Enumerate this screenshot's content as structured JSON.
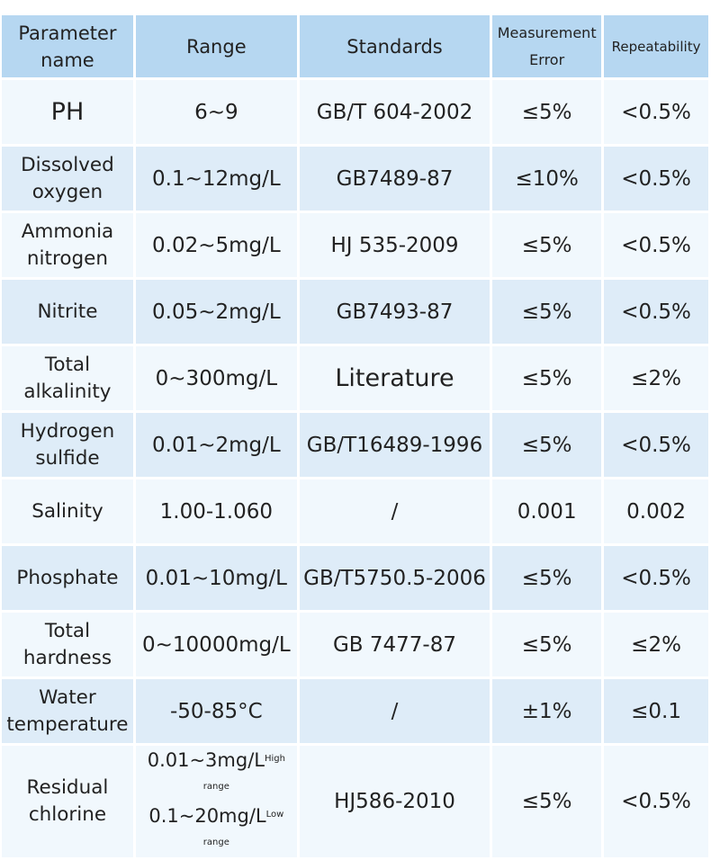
{
  "headers": {
    "name": [
      "Parameter",
      "name"
    ],
    "range": "Range",
    "standards": "Standards",
    "error": [
      "Measurement",
      "Error"
    ],
    "repeatability": "Repeatability"
  },
  "rows": [
    {
      "name": [
        "PH"
      ],
      "range": "6~9",
      "standard": "GB/T 604-2002",
      "error": "≤5%",
      "repeat": "<0.5%"
    },
    {
      "name": [
        "Dissolved",
        "oxygen"
      ],
      "range": "0.1~12mg/L",
      "standard": "GB7489-87",
      "error": "≤10%",
      "repeat": "<0.5%"
    },
    {
      "name": [
        "Ammonia",
        "nitrogen"
      ],
      "range": "0.02~5mg/L",
      "standard": "HJ 535-2009",
      "error": "≤5%",
      "repeat": "<0.5%"
    },
    {
      "name": [
        "Nitrite"
      ],
      "range": "0.05~2mg/L",
      "standard": "GB7493-87",
      "error": "≤5%",
      "repeat": "<0.5%"
    },
    {
      "name": [
        "Total",
        "alkalinity"
      ],
      "range": "0~300mg/L",
      "standard": "Literature",
      "error": "≤5%",
      "repeat": "≤2%"
    },
    {
      "name": [
        "Hydrogen",
        "sulfide"
      ],
      "range": "0.01~2mg/L",
      "standard": "GB/T16489-1996",
      "error": "≤5%",
      "repeat": "<0.5%"
    },
    {
      "name": [
        "Salinity"
      ],
      "range": "1.00-1.060",
      "standard": "/",
      "error": "0.001",
      "repeat": "0.002"
    },
    {
      "name": [
        "Phosphate"
      ],
      "range": "0.01~10mg/L",
      "standard": "GB/T5750.5-2006",
      "error": "≤5%",
      "repeat": "<0.5%"
    },
    {
      "name": [
        "Total",
        "hardness"
      ],
      "range": "0~10000mg/L",
      "standard": "GB 7477-87",
      "error": "≤5%",
      "repeat": "≤2%"
    },
    {
      "name": [
        "Water",
        "temperature"
      ],
      "range": "-50-85°C",
      "standard": "/",
      "error": "±1%",
      "repeat": "≤0.1"
    }
  ],
  "last_row": {
    "name": [
      "Residual",
      "chlorine"
    ],
    "range_high": "0.01~3mg/L",
    "range_high_note": "High range",
    "range_low": "0.1~20mg/L",
    "range_low_note": "Low range",
    "standard": "HJ586-2010",
    "error": "≤5%",
    "repeat": "<0.5%"
  }
}
